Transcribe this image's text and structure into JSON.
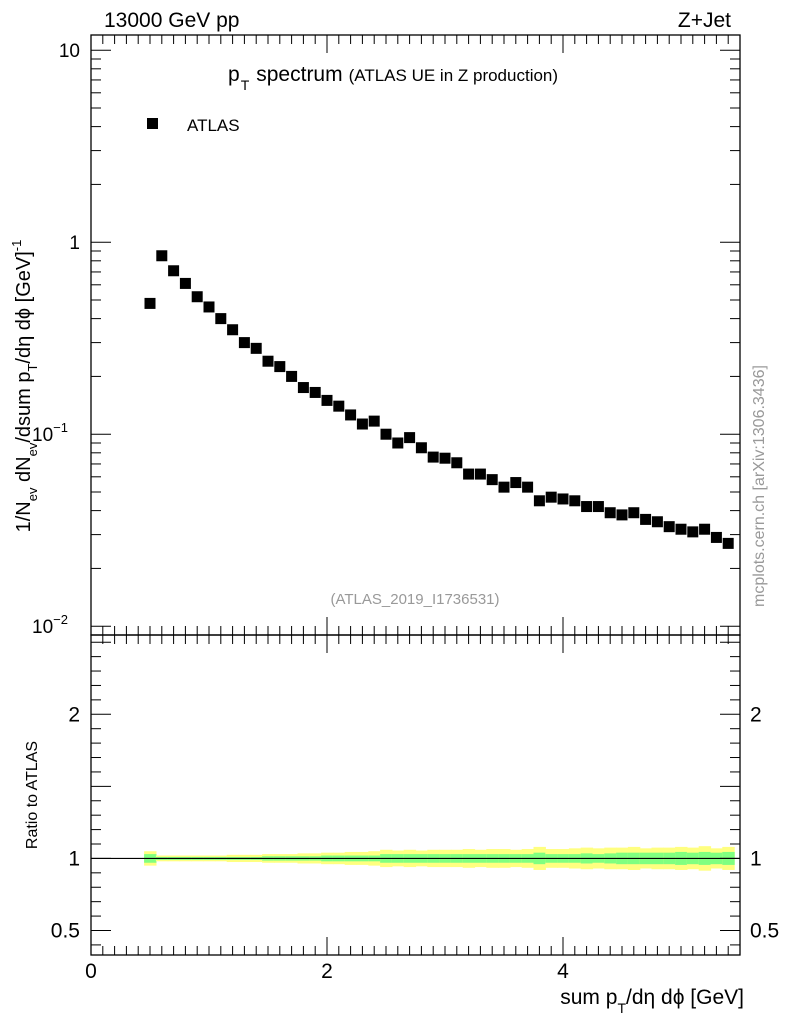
{
  "header": {
    "energy_label": "13000 GeV pp",
    "process_label": "Z+Jet"
  },
  "watermark": {
    "side_text": "mcplots.cern.ch [arXiv:1306.3436]",
    "analysis_id": "(ATLAS_2019_I1736531)"
  },
  "colors": {
    "marker": "#000000",
    "band_outer": "#ffff80",
    "band_inner": "#80ff80",
    "reference_line": "#000000",
    "watermark_text": "#999999"
  },
  "chart_data": [
    {
      "id": "main",
      "type": "scatter",
      "title": "p_T spectrum",
      "title_parts": {
        "main": "p",
        "sub": "T",
        "rest": "spectrum",
        "suffix": "(ATLAS UE in Z production)"
      },
      "ylabel_parts": {
        "a": "1/N",
        "a_sub": "ev",
        "b": " dN",
        "b_sub": "ev",
        "c": "/dsum p",
        "c_sub": "T",
        "d": "/dη dϕ  [GeV]",
        "d_sup": "-1"
      },
      "yscale": "log",
      "ylim": [
        0.009,
        12
      ],
      "xlim": [
        0,
        5.5
      ],
      "y_ticks": [
        {
          "value": 10,
          "label": "10"
        },
        {
          "value": 1,
          "label": "1"
        },
        {
          "value": 0.1,
          "label": "10",
          "exp": "−1"
        },
        {
          "value": 0.01,
          "label": "10",
          "exp": "−2"
        }
      ],
      "legend": {
        "label": "ATLAS",
        "position": "top-left",
        "marker": "square"
      },
      "series": [
        {
          "name": "ATLAS",
          "x": [
            0.5,
            0.6,
            0.7,
            0.8,
            0.9,
            1.0,
            1.1,
            1.2,
            1.3,
            1.4,
            1.5,
            1.6,
            1.7,
            1.8,
            1.9,
            2.0,
            2.1,
            2.2,
            2.3,
            2.4,
            2.5,
            2.6,
            2.7,
            2.8,
            2.9,
            3.0,
            3.1,
            3.2,
            3.3,
            3.4,
            3.5,
            3.6,
            3.7,
            3.8,
            3.9,
            4.0,
            4.1,
            4.2,
            4.3,
            4.4,
            4.5,
            4.6,
            4.7,
            4.8,
            4.9,
            5.0,
            5.1,
            5.2,
            5.3,
            5.4
          ],
          "y": [
            0.48,
            0.85,
            0.71,
            0.61,
            0.52,
            0.46,
            0.4,
            0.35,
            0.3,
            0.28,
            0.24,
            0.225,
            0.2,
            0.175,
            0.165,
            0.15,
            0.14,
            0.126,
            0.113,
            0.117,
            0.1,
            0.09,
            0.096,
            0.085,
            0.076,
            0.075,
            0.071,
            0.062,
            0.062,
            0.058,
            0.053,
            0.056,
            0.053,
            0.045,
            0.047,
            0.046,
            0.045,
            0.042,
            0.042,
            0.039,
            0.038,
            0.039,
            0.036,
            0.035,
            0.033,
            0.032,
            0.031,
            0.032,
            0.029,
            0.027
          ]
        }
      ]
    },
    {
      "id": "ratio",
      "type": "area",
      "ylabel": "Ratio to ATLAS",
      "xlabel_parts": {
        "a": "sum p",
        "a_sub": "T",
        "b": "/dη dϕ [GeV]"
      },
      "ylim": [
        0.33,
        2.55
      ],
      "xlim": [
        0,
        5.5
      ],
      "x_ticks": [
        {
          "value": 0,
          "label": "0"
        },
        {
          "value": 2,
          "label": "2"
        },
        {
          "value": 4,
          "label": "4"
        }
      ],
      "y_ticks": [
        {
          "value": 2,
          "label": "2"
        },
        {
          "value": 1,
          "label": "1"
        },
        {
          "value": 0.5,
          "label": "0.5"
        }
      ],
      "reference_line": 1,
      "bands": {
        "x": [
          0.5,
          0.6,
          0.7,
          0.8,
          0.9,
          1.0,
          1.1,
          1.2,
          1.3,
          1.4,
          1.5,
          1.6,
          1.7,
          1.8,
          1.9,
          2.0,
          2.1,
          2.2,
          2.3,
          2.4,
          2.5,
          2.6,
          2.7,
          2.8,
          2.9,
          3.0,
          3.1,
          3.2,
          3.3,
          3.4,
          3.5,
          3.6,
          3.7,
          3.8,
          3.9,
          4.0,
          4.1,
          4.2,
          4.3,
          4.4,
          4.5,
          4.6,
          4.7,
          4.8,
          4.9,
          5.0,
          5.1,
          5.2,
          5.3,
          5.4
        ],
        "inner_half_width": [
          0.03,
          0.01,
          0.01,
          0.01,
          0.01,
          0.01,
          0.01,
          0.01,
          0.01,
          0.01,
          0.015,
          0.015,
          0.015,
          0.015,
          0.015,
          0.02,
          0.02,
          0.02,
          0.02,
          0.02,
          0.03,
          0.03,
          0.03,
          0.03,
          0.03,
          0.03,
          0.03,
          0.03,
          0.03,
          0.03,
          0.03,
          0.03,
          0.03,
          0.04,
          0.03,
          0.03,
          0.03,
          0.035,
          0.03,
          0.035,
          0.04,
          0.04,
          0.04,
          0.04,
          0.04,
          0.045,
          0.04,
          0.045,
          0.04,
          0.045
        ],
        "outer_half_width": [
          0.05,
          0.02,
          0.02,
          0.02,
          0.02,
          0.02,
          0.02,
          0.025,
          0.025,
          0.025,
          0.03,
          0.03,
          0.03,
          0.035,
          0.035,
          0.04,
          0.04,
          0.045,
          0.045,
          0.05,
          0.06,
          0.055,
          0.06,
          0.055,
          0.06,
          0.06,
          0.06,
          0.065,
          0.06,
          0.065,
          0.065,
          0.06,
          0.065,
          0.08,
          0.065,
          0.065,
          0.07,
          0.075,
          0.07,
          0.075,
          0.075,
          0.08,
          0.07,
          0.075,
          0.075,
          0.08,
          0.075,
          0.085,
          0.07,
          0.08
        ]
      }
    }
  ]
}
